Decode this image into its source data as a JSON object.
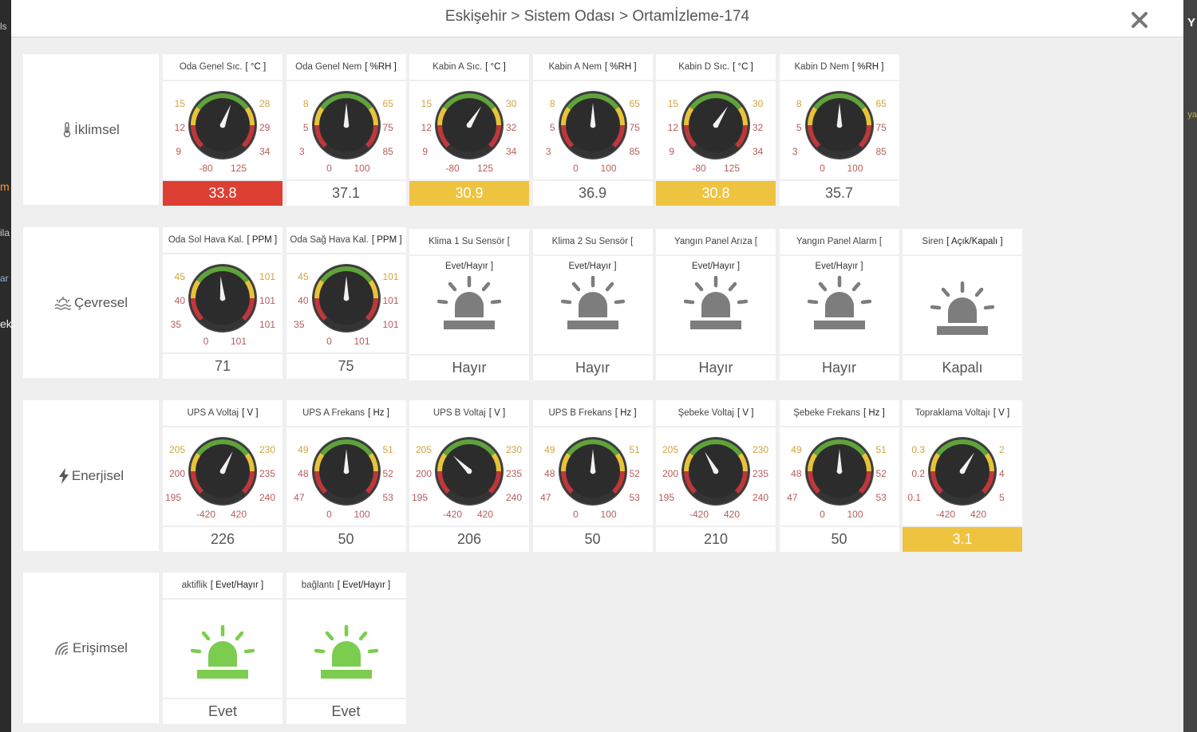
{
  "title": "Eskişehir > Sistem Odası > Ortamİzleme-174",
  "background_fragments": [
    "Y",
    "ls",
    "ya",
    "m",
    "ila",
    "ar",
    "ek",
    "Y"
  ],
  "colors": {
    "red": "#dd3f32",
    "yellow": "#eec340",
    "gauge_green": "#5fa33b",
    "gauge_yellow": "#e7c33a",
    "gauge_red": "#c0373b",
    "alarm_gray": "#7d7d7d",
    "alarm_green": "#7ccd4f"
  },
  "categories": [
    {
      "label": "İklimsel",
      "icon": "thermometer-icon",
      "cards": [
        {
          "type": "gauge",
          "title": "Oda Genel Sıc.",
          "unit": "[ °C ]",
          "left": [
            "15",
            "12",
            "9"
          ],
          "right": [
            "28",
            "29",
            "34"
          ],
          "min": "-80",
          "max": "125",
          "value": "33.8",
          "level": 0.58,
          "status": "red"
        },
        {
          "type": "gauge",
          "title": "Oda Genel Nem",
          "unit": "[ %RH ]",
          "left": [
            "8",
            "5",
            "3"
          ],
          "right": [
            "65",
            "75",
            "85"
          ],
          "min": "0",
          "max": "100",
          "value": "37.1",
          "level": 0.5,
          "status": ""
        },
        {
          "type": "gauge",
          "title": "Kabin A Sıc.",
          "unit": "[ °C ]",
          "left": [
            "15",
            "12",
            "9"
          ],
          "right": [
            "30",
            "32",
            "34"
          ],
          "min": "-80",
          "max": "125",
          "value": "30.9",
          "level": 0.62,
          "status": "yellow"
        },
        {
          "type": "gauge",
          "title": "Kabin A Nem",
          "unit": "[ %RH ]",
          "left": [
            "8",
            "5",
            "3"
          ],
          "right": [
            "65",
            "75",
            "85"
          ],
          "min": "0",
          "max": "100",
          "value": "36.9",
          "level": 0.5,
          "status": ""
        },
        {
          "type": "gauge",
          "title": "Kabin D Sıc.",
          "unit": "[ °C ]",
          "left": [
            "15",
            "12",
            "9"
          ],
          "right": [
            "30",
            "32",
            "34"
          ],
          "min": "-80",
          "max": "125",
          "value": "30.8",
          "level": 0.62,
          "status": "yellow"
        },
        {
          "type": "gauge",
          "title": "Kabin D Nem",
          "unit": "[ %RH ]",
          "left": [
            "8",
            "5",
            "3"
          ],
          "right": [
            "65",
            "75",
            "85"
          ],
          "min": "0",
          "max": "100",
          "value": "35.7",
          "level": 0.5,
          "status": ""
        }
      ]
    },
    {
      "label": "Çevresel",
      "icon": "environment-icon",
      "cards": [
        {
          "type": "gauge",
          "title": "Oda Sol Hava Kal.",
          "unit": "[ PPM ]",
          "left": [
            "45",
            "40",
            "35"
          ],
          "right": [
            "101",
            "101",
            "101"
          ],
          "min": "0",
          "max": "101",
          "value": "71",
          "level": 0.48,
          "status": ""
        },
        {
          "type": "gauge",
          "title": "Oda Sağ Hava Kal.",
          "unit": "[ PPM ]",
          "left": [
            "45",
            "40",
            "35"
          ],
          "right": [
            "101",
            "101",
            "101"
          ],
          "min": "0",
          "max": "101",
          "value": "75",
          "level": 0.5,
          "status": ""
        },
        {
          "type": "alarm",
          "title": "Klima 1 Su Sensör [",
          "sub": "Evet/Hayır ]",
          "value": "Hayır",
          "color": "gray"
        },
        {
          "type": "alarm",
          "title": "Klima 2 Su Sensör [",
          "sub": "Evet/Hayır ]",
          "value": "Hayır",
          "color": "gray"
        },
        {
          "type": "alarm",
          "title": "Yangın Panel Arıza [",
          "sub": "Evet/Hayır ]",
          "value": "Hayır",
          "color": "gray"
        },
        {
          "type": "alarm",
          "title": "Yangın Panel Alarm [",
          "sub": "Evet/Hayır ]",
          "value": "Hayır",
          "color": "gray"
        },
        {
          "type": "alarm",
          "title": "Siren",
          "unit": "[ Açık/Kapalı ]",
          "sub": "",
          "value": "Kapalı",
          "color": "gray"
        }
      ]
    },
    {
      "label": "Enerjisel",
      "icon": "lightning-icon",
      "cards": [
        {
          "type": "gauge",
          "title": "UPS A Voltaj",
          "unit": "[ V ]",
          "left": [
            "205",
            "200",
            "195"
          ],
          "right": [
            "230",
            "235",
            "240"
          ],
          "min": "-420",
          "max": "420",
          "value": "226",
          "level": 0.6,
          "status": ""
        },
        {
          "type": "gauge",
          "title": "UPS A Frekans",
          "unit": "[ Hz ]",
          "left": [
            "49",
            "48",
            "47"
          ],
          "right": [
            "51",
            "52",
            "53"
          ],
          "min": "0",
          "max": "100",
          "value": "50",
          "level": 0.5,
          "status": ""
        },
        {
          "type": "gauge",
          "title": "UPS B Voltaj",
          "unit": "[ V ]",
          "left": [
            "205",
            "200",
            "195"
          ],
          "right": [
            "230",
            "235",
            "240"
          ],
          "min": "-420",
          "max": "420",
          "value": "206",
          "level": 0.33,
          "status": ""
        },
        {
          "type": "gauge",
          "title": "UPS B Frekans",
          "unit": "[ Hz ]",
          "left": [
            "49",
            "48",
            "47"
          ],
          "right": [
            "51",
            "52",
            "53"
          ],
          "min": "0",
          "max": "100",
          "value": "50",
          "level": 0.5,
          "status": ""
        },
        {
          "type": "gauge",
          "title": "Şebeke Voltaj",
          "unit": "[ V ]",
          "left": [
            "205",
            "200",
            "195"
          ],
          "right": [
            "230",
            "235",
            "240"
          ],
          "min": "-420",
          "max": "420",
          "value": "210",
          "level": 0.39,
          "status": ""
        },
        {
          "type": "gauge",
          "title": "Şebeke Frekans",
          "unit": "[ Hz ]",
          "left": [
            "49",
            "48",
            "47"
          ],
          "right": [
            "51",
            "52",
            "53"
          ],
          "min": "0",
          "max": "100",
          "value": "50",
          "level": 0.5,
          "status": ""
        },
        {
          "type": "gauge",
          "title": "Topraklama Voltajı",
          "unit": "[ V ]",
          "left": [
            "0.3",
            "0.2",
            "0.1"
          ],
          "right": [
            "2",
            "4",
            "5"
          ],
          "min": "-420",
          "max": "420",
          "value": "3.1",
          "level": 0.62,
          "status": "yellow"
        }
      ]
    },
    {
      "label": "Erişimsel",
      "icon": "signal-icon",
      "cards": [
        {
          "type": "alarm",
          "title": "aktiflik",
          "unit": "[ Evet/Hayır ]",
          "sub": "",
          "value": "Evet",
          "color": "green"
        },
        {
          "type": "alarm",
          "title": "bağlantı",
          "unit": "[ Evet/Hayır ]",
          "sub": "",
          "value": "Evet",
          "color": "green"
        }
      ]
    }
  ]
}
